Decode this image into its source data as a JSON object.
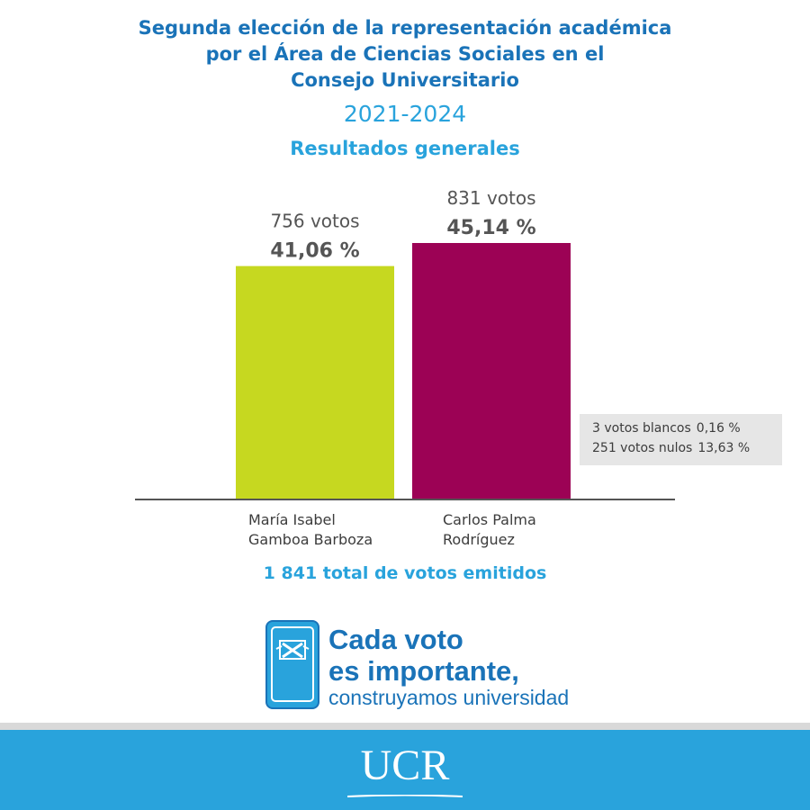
{
  "header": {
    "title_line1": "Segunda elección de la representación académica",
    "title_line2": "por el Área de Ciencias Sociales en el",
    "title_line3": "Consejo Universitario",
    "years": "2021-2024",
    "subtitle": "Resultados generales"
  },
  "chart_data": {
    "type": "bar",
    "categories": [
      "María Isabel Gamboa Barboza",
      "Carlos Palma Rodríguez"
    ],
    "category_lines": [
      [
        "María Isabel",
        "Gamboa Barboza"
      ],
      [
        "Carlos Palma",
        "Rodríguez"
      ]
    ],
    "values": [
      756,
      831
    ],
    "vote_labels": [
      "756 votos",
      "831 votos"
    ],
    "percent_labels": [
      "41,06 %",
      "45,14 %"
    ],
    "colors": [
      "#c6d820",
      "#9c0255"
    ],
    "axis_color": "#555555",
    "ylim": [
      0,
      1000
    ],
    "grid": false
  },
  "extra_votes": {
    "blank": {
      "label": "3 votos blancos",
      "percent": "0,16 %"
    },
    "null": {
      "label": "251 votos nulos",
      "percent": "13,63 %"
    }
  },
  "total_label": "1 841 total de votos emitidos",
  "campaign": {
    "line1": "Cada voto",
    "line2": "es importante,",
    "line3": "construyamos universidad",
    "icon": "ballot-box-icon"
  },
  "footer": {
    "logo_text": "UCR"
  },
  "colors": {
    "title": "#1a73b8",
    "accent": "#29a3dc",
    "footer_bg": "#29a3dc"
  }
}
